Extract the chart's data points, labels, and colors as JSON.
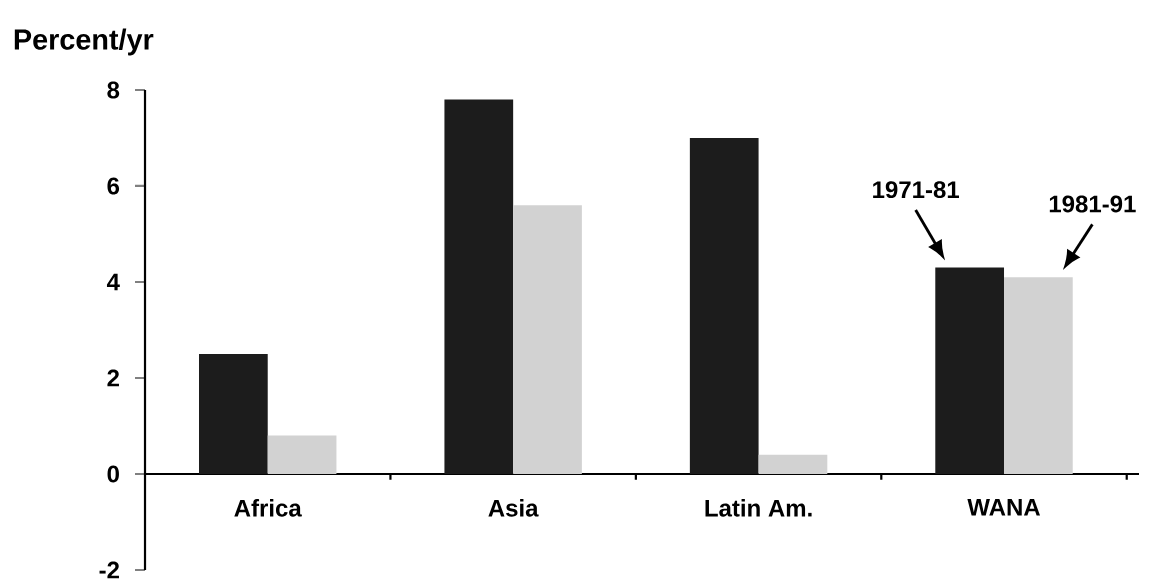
{
  "chart_data": {
    "type": "bar",
    "ylabel": "Percent/yr",
    "categories": [
      "Africa",
      "Asia",
      "Latin Am.",
      "WANA"
    ],
    "series": [
      {
        "name": "1971-81",
        "color": "#1c1c1c",
        "values": [
          2.5,
          7.8,
          7.0,
          4.3
        ]
      },
      {
        "name": "1981-91",
        "color": "#d2d2d2",
        "values": [
          0.8,
          5.6,
          0.4,
          4.1
        ]
      }
    ],
    "ylim": [
      -2,
      8
    ],
    "yticks": [
      -2,
      0,
      2,
      4,
      6,
      8
    ],
    "grid": false,
    "legend": false
  }
}
